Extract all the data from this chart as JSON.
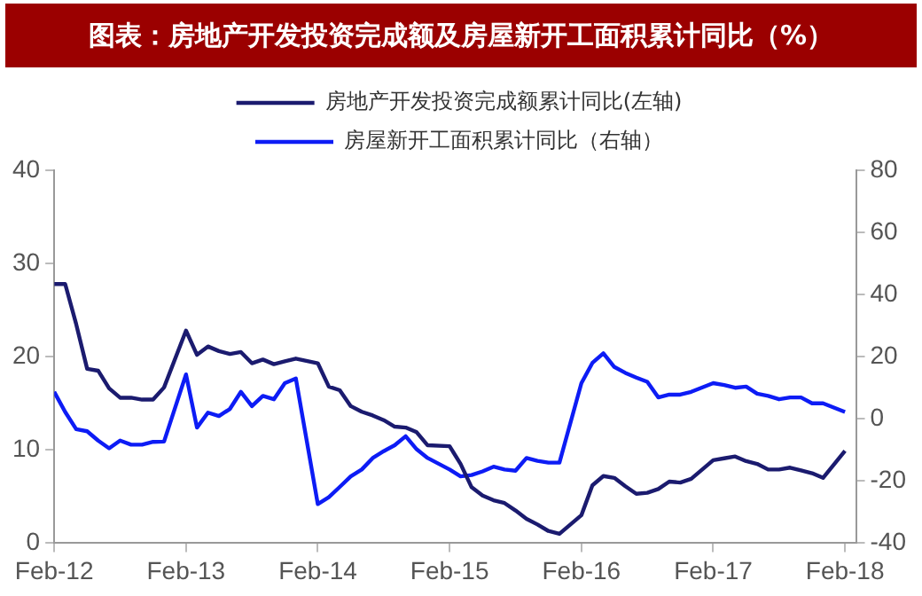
{
  "chart_data": {
    "type": "line",
    "title": "图表：房地产开发投资完成额及房屋新开工面积累计同比（%）",
    "legend": "top",
    "xlim": [
      "2012-02",
      "2018-03"
    ],
    "xticks": [
      {
        "value": "2012-02",
        "label": "Feb-12"
      },
      {
        "value": "2013-02",
        "label": "Feb-13"
      },
      {
        "value": "2014-02",
        "label": "Feb-14"
      },
      {
        "value": "2015-02",
        "label": "Feb-15"
      },
      {
        "value": "2016-02",
        "label": "Feb-16"
      },
      {
        "value": "2017-02",
        "label": "Feb-17"
      },
      {
        "value": "2018-02",
        "label": "Feb-18"
      }
    ],
    "x": [
      "2012-02",
      "2012-03",
      "2012-04",
      "2012-05",
      "2012-06",
      "2012-07",
      "2012-08",
      "2012-09",
      "2012-10",
      "2012-11",
      "2012-12",
      "2013-02",
      "2013-03",
      "2013-04",
      "2013-05",
      "2013-06",
      "2013-07",
      "2013-08",
      "2013-09",
      "2013-10",
      "2013-11",
      "2013-12",
      "2014-02",
      "2014-03",
      "2014-04",
      "2014-05",
      "2014-06",
      "2014-07",
      "2014-08",
      "2014-09",
      "2014-10",
      "2014-11",
      "2014-12",
      "2015-02",
      "2015-03",
      "2015-04",
      "2015-05",
      "2015-06",
      "2015-07",
      "2015-08",
      "2015-09",
      "2015-10",
      "2015-11",
      "2015-12",
      "2016-02",
      "2016-03",
      "2016-04",
      "2016-05",
      "2016-06",
      "2016-07",
      "2016-08",
      "2016-09",
      "2016-10",
      "2016-11",
      "2016-12",
      "2017-02",
      "2017-03",
      "2017-04",
      "2017-05",
      "2017-06",
      "2017-07",
      "2017-08",
      "2017-09",
      "2017-10",
      "2017-11",
      "2017-12",
      "2018-02"
    ],
    "ylim": [
      0,
      40
    ],
    "yticks": [
      0,
      10,
      20,
      30,
      40
    ],
    "y2lim": [
      -40,
      80
    ],
    "y2ticks": [
      -40,
      -20,
      0,
      20,
      40,
      60,
      80
    ],
    "series": [
      {
        "name": "房地产开发投资完成额累计同比(左轴)",
        "color": "#1b1b6f",
        "values": [
          27.8,
          27.8,
          23.5,
          18.7,
          18.5,
          16.6,
          15.6,
          15.6,
          15.4,
          15.4,
          16.7,
          22.8,
          20.2,
          21.1,
          20.6,
          20.3,
          20.5,
          19.3,
          19.7,
          19.2,
          19.5,
          19.8,
          19.3,
          16.8,
          16.4,
          14.7,
          14.1,
          13.7,
          13.2,
          12.5,
          12.4,
          11.9,
          10.5,
          10.4,
          8.5,
          6.0,
          5.1,
          4.6,
          4.3,
          3.5,
          2.6,
          2.0,
          1.3,
          1.0,
          3.0,
          6.2,
          7.2,
          7.0,
          6.1,
          5.3,
          5.4,
          5.8,
          6.6,
          6.5,
          6.9,
          8.9,
          9.1,
          9.3,
          8.8,
          8.5,
          7.9,
          7.9,
          8.1,
          7.8,
          7.5,
          7.0,
          9.9
        ]
      },
      {
        "name": "房屋新开工面积累计同比（右轴）",
        "color": "#0d1cf5",
        "axis": "y2",
        "values": [
          8.7,
          2.2,
          -3.3,
          -4.0,
          -7.0,
          -9.5,
          -7.0,
          -8.3,
          -8.3,
          -7.4,
          -7.3,
          14.3,
          -2.8,
          2.0,
          0.9,
          3.2,
          8.7,
          4.1,
          7.4,
          6.3,
          11.5,
          13.0,
          -27.4,
          -25.2,
          -21.9,
          -18.5,
          -16.3,
          -12.6,
          -10.4,
          -8.5,
          -5.6,
          -9.8,
          -12.6,
          -16.3,
          -18.5,
          -18.1,
          -16.9,
          -15.4,
          -16.3,
          -16.7,
          -12.6,
          -13.5,
          -14.1,
          -14.1,
          11.5,
          18.0,
          21.1,
          16.7,
          14.8,
          13.3,
          11.9,
          6.9,
          7.8,
          7.8,
          8.7,
          11.5,
          10.9,
          10.0,
          10.4,
          8.1,
          7.4,
          6.3,
          6.9,
          6.9,
          5.0,
          5.0,
          2.2
        ]
      }
    ]
  }
}
